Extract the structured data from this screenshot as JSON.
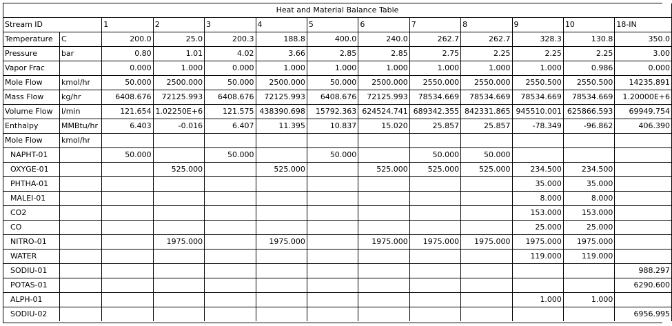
{
  "title": "Heat and Material Balance Table",
  "header": {
    "label": "Stream ID",
    "unit": "",
    "values": [
      "1",
      "2",
      "3",
      "4",
      "5",
      "6",
      "7",
      "8",
      "9",
      "10",
      "18-IN"
    ]
  },
  "rows": [
    {
      "label": "Temperature",
      "unit": "C",
      "values": [
        "200.0",
        "25.0",
        "200.3",
        "188.8",
        "400.0",
        "240.0",
        "262.7",
        "262.7",
        "328.3",
        "130.8",
        "350.0"
      ]
    },
    {
      "label": "Pressure",
      "unit": "bar",
      "values": [
        "0.80",
        "1.01",
        "4.02",
        "3.66",
        "2.85",
        "2.85",
        "2.75",
        "2.25",
        "2.25",
        "2.25",
        "3.00"
      ]
    },
    {
      "label": "Vapor Frac",
      "unit": "",
      "values": [
        "0.000",
        "1.000",
        "0.000",
        "1.000",
        "1.000",
        "1.000",
        "1.000",
        "1.000",
        "1.000",
        "0.986",
        "0.000"
      ]
    },
    {
      "label": "Mole Flow",
      "unit": "kmol/hr",
      "values": [
        "50.000",
        "2500.000",
        "50.000",
        "2500.000",
        "50.000",
        "2500.000",
        "2550.000",
        "2550.000",
        "2550.500",
        "2550.500",
        "14235.891"
      ]
    },
    {
      "label": "Mass Flow",
      "unit": "kg/hr",
      "values": [
        "6408.676",
        "72125.993",
        "6408.676",
        "72125.993",
        "6408.676",
        "72125.993",
        "78534.669",
        "78534.669",
        "78534.669",
        "78534.669",
        "1.20000E+6"
      ]
    },
    {
      "label": "Volume Flow",
      "unit": "l/min",
      "values": [
        "121.654",
        "1.02250E+6",
        "121.575",
        "438390.698",
        "15792.363",
        "624524.741",
        "689342.355",
        "842331.865",
        "945510.001",
        "625866.593",
        "69949.754"
      ]
    },
    {
      "label": "Enthalpy",
      "unit": "MMBtu/hr",
      "values": [
        "6.403",
        "-0.016",
        "6.407",
        "11.395",
        "10.837",
        "15.020",
        "25.857",
        "25.857",
        "-78.349",
        "-96.862",
        "406.390"
      ]
    },
    {
      "label": "Mole Flow",
      "unit": "kmol/hr",
      "values": [
        "",
        "",
        "",
        "",
        "",
        "",
        "",
        "",
        "",
        "",
        ""
      ]
    }
  ],
  "components": [
    {
      "label": "NAPHT-01",
      "values": [
        "50.000",
        "",
        "50.000",
        "",
        "50.000",
        "",
        "50.000",
        "50.000",
        "",
        "",
        ""
      ]
    },
    {
      "label": "OXYGE-01",
      "values": [
        "",
        "525.000",
        "",
        "525.000",
        "",
        "525.000",
        "525.000",
        "525.000",
        "234.500",
        "234.500",
        ""
      ]
    },
    {
      "label": "PHTHA-01",
      "values": [
        "",
        "",
        "",
        "",
        "",
        "",
        "",
        "",
        "35.000",
        "35.000",
        ""
      ]
    },
    {
      "label": "MALEI-01",
      "values": [
        "",
        "",
        "",
        "",
        "",
        "",
        "",
        "",
        "8.000",
        "8.000",
        ""
      ]
    },
    {
      "label": "CO2",
      "values": [
        "",
        "",
        "",
        "",
        "",
        "",
        "",
        "",
        "153.000",
        "153.000",
        ""
      ]
    },
    {
      "label": "CO",
      "values": [
        "",
        "",
        "",
        "",
        "",
        "",
        "",
        "",
        "25.000",
        "25.000",
        ""
      ]
    },
    {
      "label": "NITRO-01",
      "values": [
        "",
        "1975.000",
        "",
        "1975.000",
        "",
        "1975.000",
        "1975.000",
        "1975.000",
        "1975.000",
        "1975.000",
        ""
      ]
    },
    {
      "label": "WATER",
      "values": [
        "",
        "",
        "",
        "",
        "",
        "",
        "",
        "",
        "119.000",
        "119.000",
        ""
      ]
    },
    {
      "label": "SODIU-01",
      "values": [
        "",
        "",
        "",
        "",
        "",
        "",
        "",
        "",
        "",
        "",
        "988.297"
      ]
    },
    {
      "label": "POTAS-01",
      "values": [
        "",
        "",
        "",
        "",
        "",
        "",
        "",
        "",
        "",
        "",
        "6290.600"
      ]
    },
    {
      "label": "ALPH-01",
      "values": [
        "",
        "",
        "",
        "",
        "",
        "",
        "",
        "",
        "1.000",
        "1.000",
        ""
      ]
    },
    {
      "label": "SODIU-02",
      "values": [
        "",
        "",
        "",
        "",
        "",
        "",
        "",
        "",
        "",
        "",
        "6956.995"
      ]
    }
  ]
}
